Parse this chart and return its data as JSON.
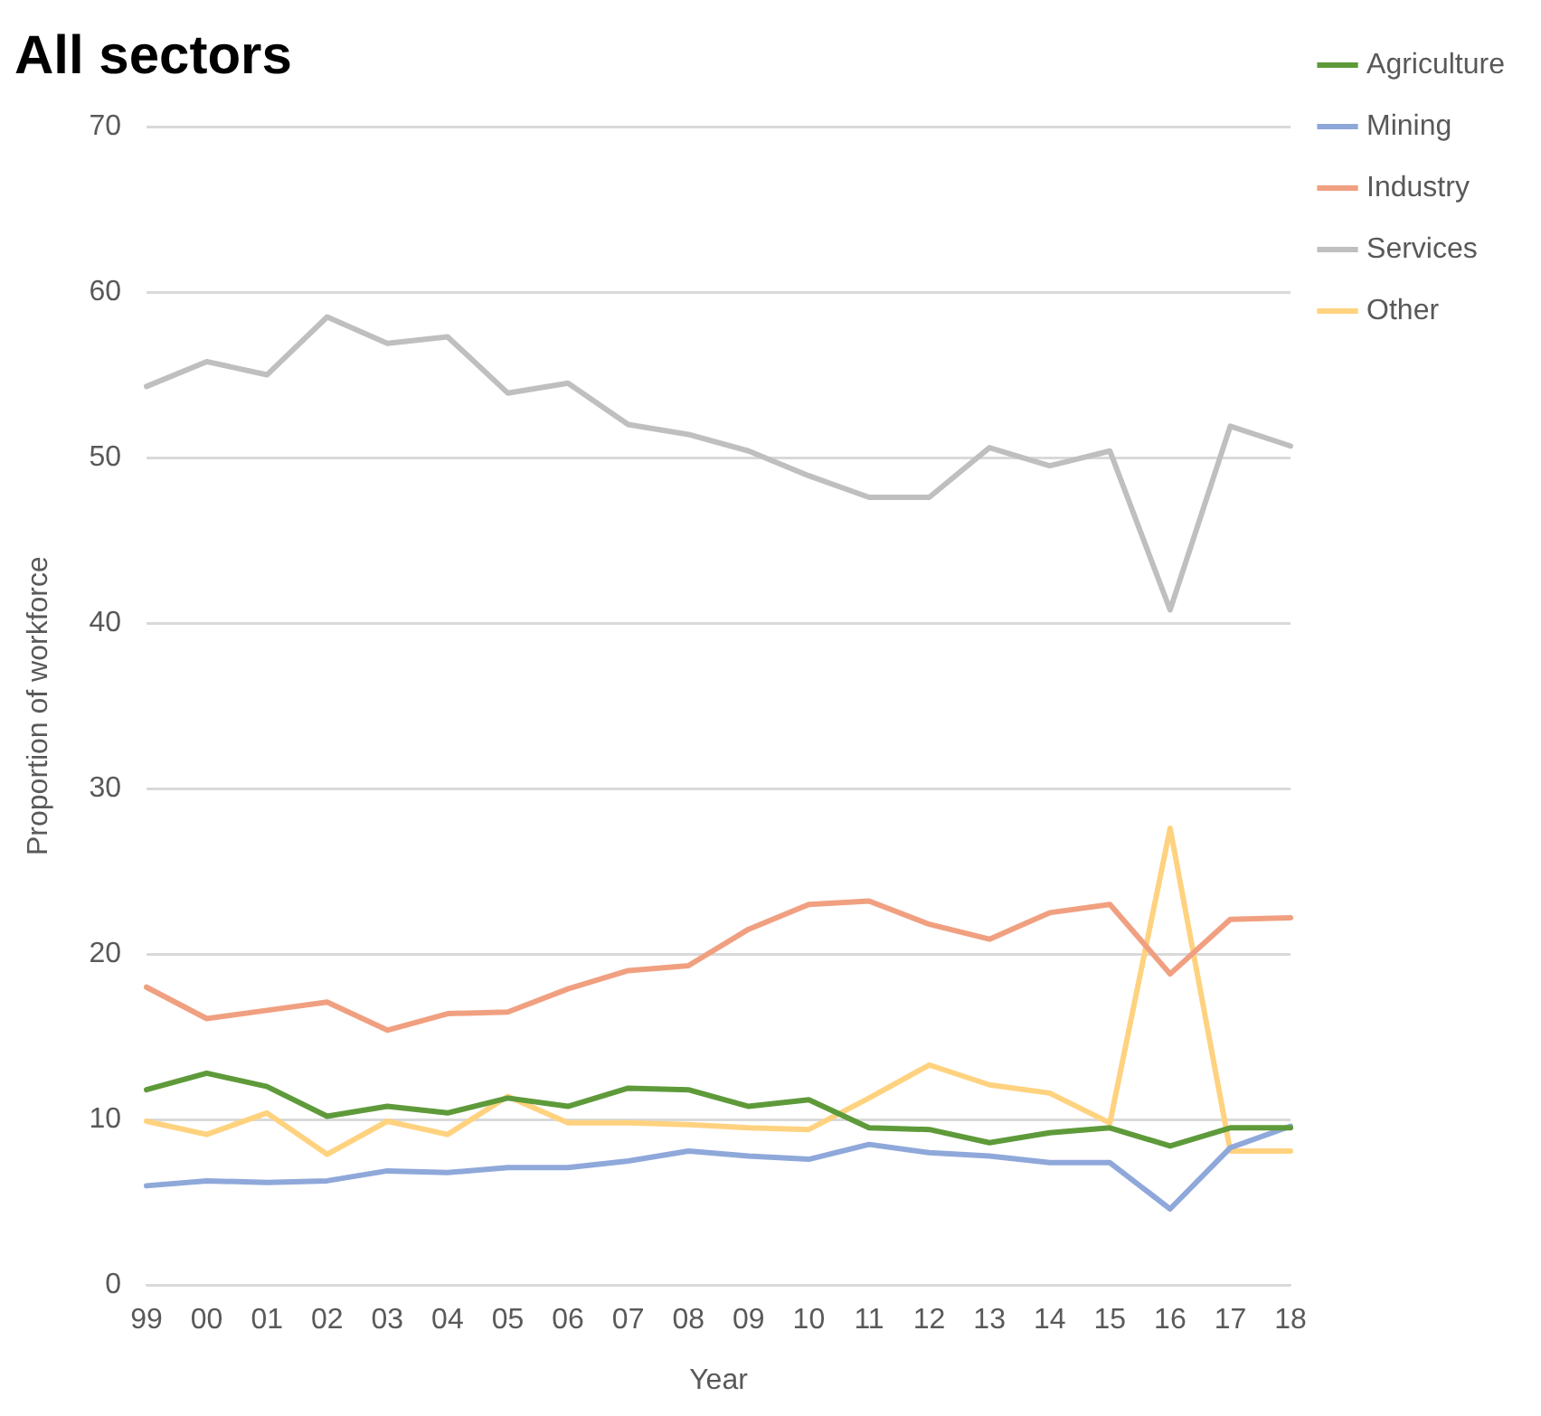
{
  "chart_data": {
    "type": "line",
    "title": "All sectors",
    "xlabel": "Year",
    "ylabel": "Proportion of workforce",
    "categories": [
      "99",
      "00",
      "01",
      "02",
      "03",
      "04",
      "05",
      "06",
      "07",
      "08",
      "09",
      "10",
      "11",
      "12",
      "13",
      "14",
      "15",
      "16",
      "17",
      "18"
    ],
    "series": [
      {
        "name": "Agriculture",
        "color": "#5e9a3a",
        "values": [
          11.8,
          12.8,
          12.0,
          10.2,
          10.8,
          10.4,
          11.3,
          10.8,
          11.9,
          11.8,
          10.8,
          11.2,
          9.5,
          9.4,
          8.6,
          9.2,
          9.5,
          8.4,
          9.5,
          9.5
        ]
      },
      {
        "name": "Mining",
        "color": "#8fa8da",
        "values": [
          6.0,
          6.3,
          6.2,
          6.3,
          6.9,
          6.8,
          7.1,
          7.1,
          7.5,
          8.1,
          7.8,
          7.6,
          8.5,
          8.0,
          7.8,
          7.4,
          7.4,
          4.6,
          8.3,
          9.6
        ]
      },
      {
        "name": "Industry",
        "color": "#f0a080",
        "values": [
          18.0,
          16.1,
          16.6,
          17.1,
          15.4,
          16.4,
          16.5,
          17.9,
          19.0,
          19.3,
          21.5,
          23.0,
          23.2,
          21.8,
          20.9,
          22.5,
          23.0,
          18.8,
          22.1,
          22.2
        ]
      },
      {
        "name": "Services",
        "color": "#bfbfbf",
        "values": [
          54.3,
          55.8,
          55.0,
          58.5,
          56.9,
          57.3,
          53.9,
          54.5,
          52.0,
          51.4,
          50.4,
          48.9,
          47.6,
          47.6,
          50.6,
          49.5,
          50.4,
          40.8,
          51.9,
          50.7
        ]
      },
      {
        "name": "Other",
        "color": "#ffd27f",
        "values": [
          9.9,
          9.1,
          10.4,
          7.9,
          9.9,
          9.1,
          11.4,
          9.8,
          9.8,
          9.7,
          9.5,
          9.4,
          11.3,
          13.3,
          12.1,
          11.6,
          9.8,
          27.6,
          8.1,
          8.1
        ]
      }
    ],
    "ylim": [
      0,
      70
    ],
    "yticks": [
      0,
      10,
      20,
      30,
      40,
      50,
      60,
      70
    ],
    "grid": "y",
    "legend": "top right",
    "marker": "none",
    "line_style": "solid"
  }
}
